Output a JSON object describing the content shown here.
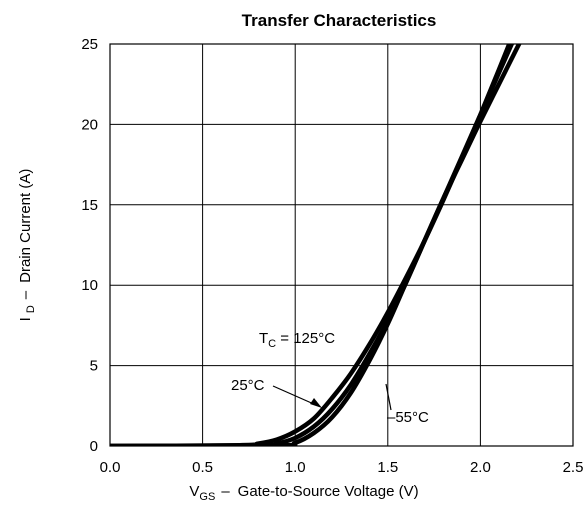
{
  "chart_data": {
    "type": "line",
    "title": "Transfer Characteristics",
    "xlabel": {
      "symbol": "V",
      "subscript": "GS",
      "dash": "–",
      "text": "Gate-to-Source Voltage (V)"
    },
    "ylabel": {
      "symbol": "I",
      "subscript": "D",
      "dash": "–",
      "text": "Drain Current (A)"
    },
    "xlim": [
      0.0,
      2.5
    ],
    "ylim": [
      0,
      25
    ],
    "xticks": [
      "0.0",
      "0.5",
      "1.0",
      "1.5",
      "2.0",
      "2.5"
    ],
    "yticks": [
      "0",
      "5",
      "10",
      "15",
      "20",
      "25"
    ],
    "grid": true,
    "series": [
      {
        "name": "TC = 125°C",
        "x": [
          0.0,
          0.7,
          0.8,
          0.9,
          1.0,
          1.1,
          1.2,
          1.3,
          1.4,
          1.5,
          1.6,
          1.7,
          1.8,
          1.9,
          2.0,
          2.1,
          2.2
        ],
        "y": [
          0.0,
          0.05,
          0.15,
          0.4,
          0.9,
          1.7,
          3.0,
          4.5,
          6.3,
          8.3,
          10.5,
          12.8,
          15.3,
          17.9,
          20.6,
          23.4,
          26.3
        ]
      },
      {
        "name": "25°C",
        "x": [
          0.0,
          0.8,
          0.9,
          1.0,
          1.1,
          1.2,
          1.3,
          1.4,
          1.5,
          1.6,
          1.7,
          1.8,
          1.9,
          2.0,
          2.1,
          2.2,
          2.25
        ],
        "y": [
          0.0,
          0.03,
          0.15,
          0.5,
          1.2,
          2.3,
          3.8,
          5.7,
          7.8,
          10.2,
          12.8,
          15.4,
          18.0,
          20.6,
          23.2,
          25.8,
          27.0
        ]
      },
      {
        "name": "–55°C",
        "x": [
          0.0,
          0.9,
          1.0,
          1.1,
          1.2,
          1.3,
          1.4,
          1.5,
          1.6,
          1.7,
          1.8,
          1.9,
          2.0,
          2.1,
          2.2,
          2.3
        ],
        "y": [
          0.0,
          0.03,
          0.2,
          0.8,
          1.8,
          3.3,
          5.3,
          7.6,
          10.2,
          12.8,
          15.4,
          17.8,
          20.2,
          22.5,
          24.8,
          27.0
        ]
      }
    ],
    "annotations": [
      {
        "symbol": "T",
        "subscript": "C",
        "text": " = 125°C"
      },
      {
        "text": "25°C"
      },
      {
        "text": "–55°C"
      }
    ]
  }
}
